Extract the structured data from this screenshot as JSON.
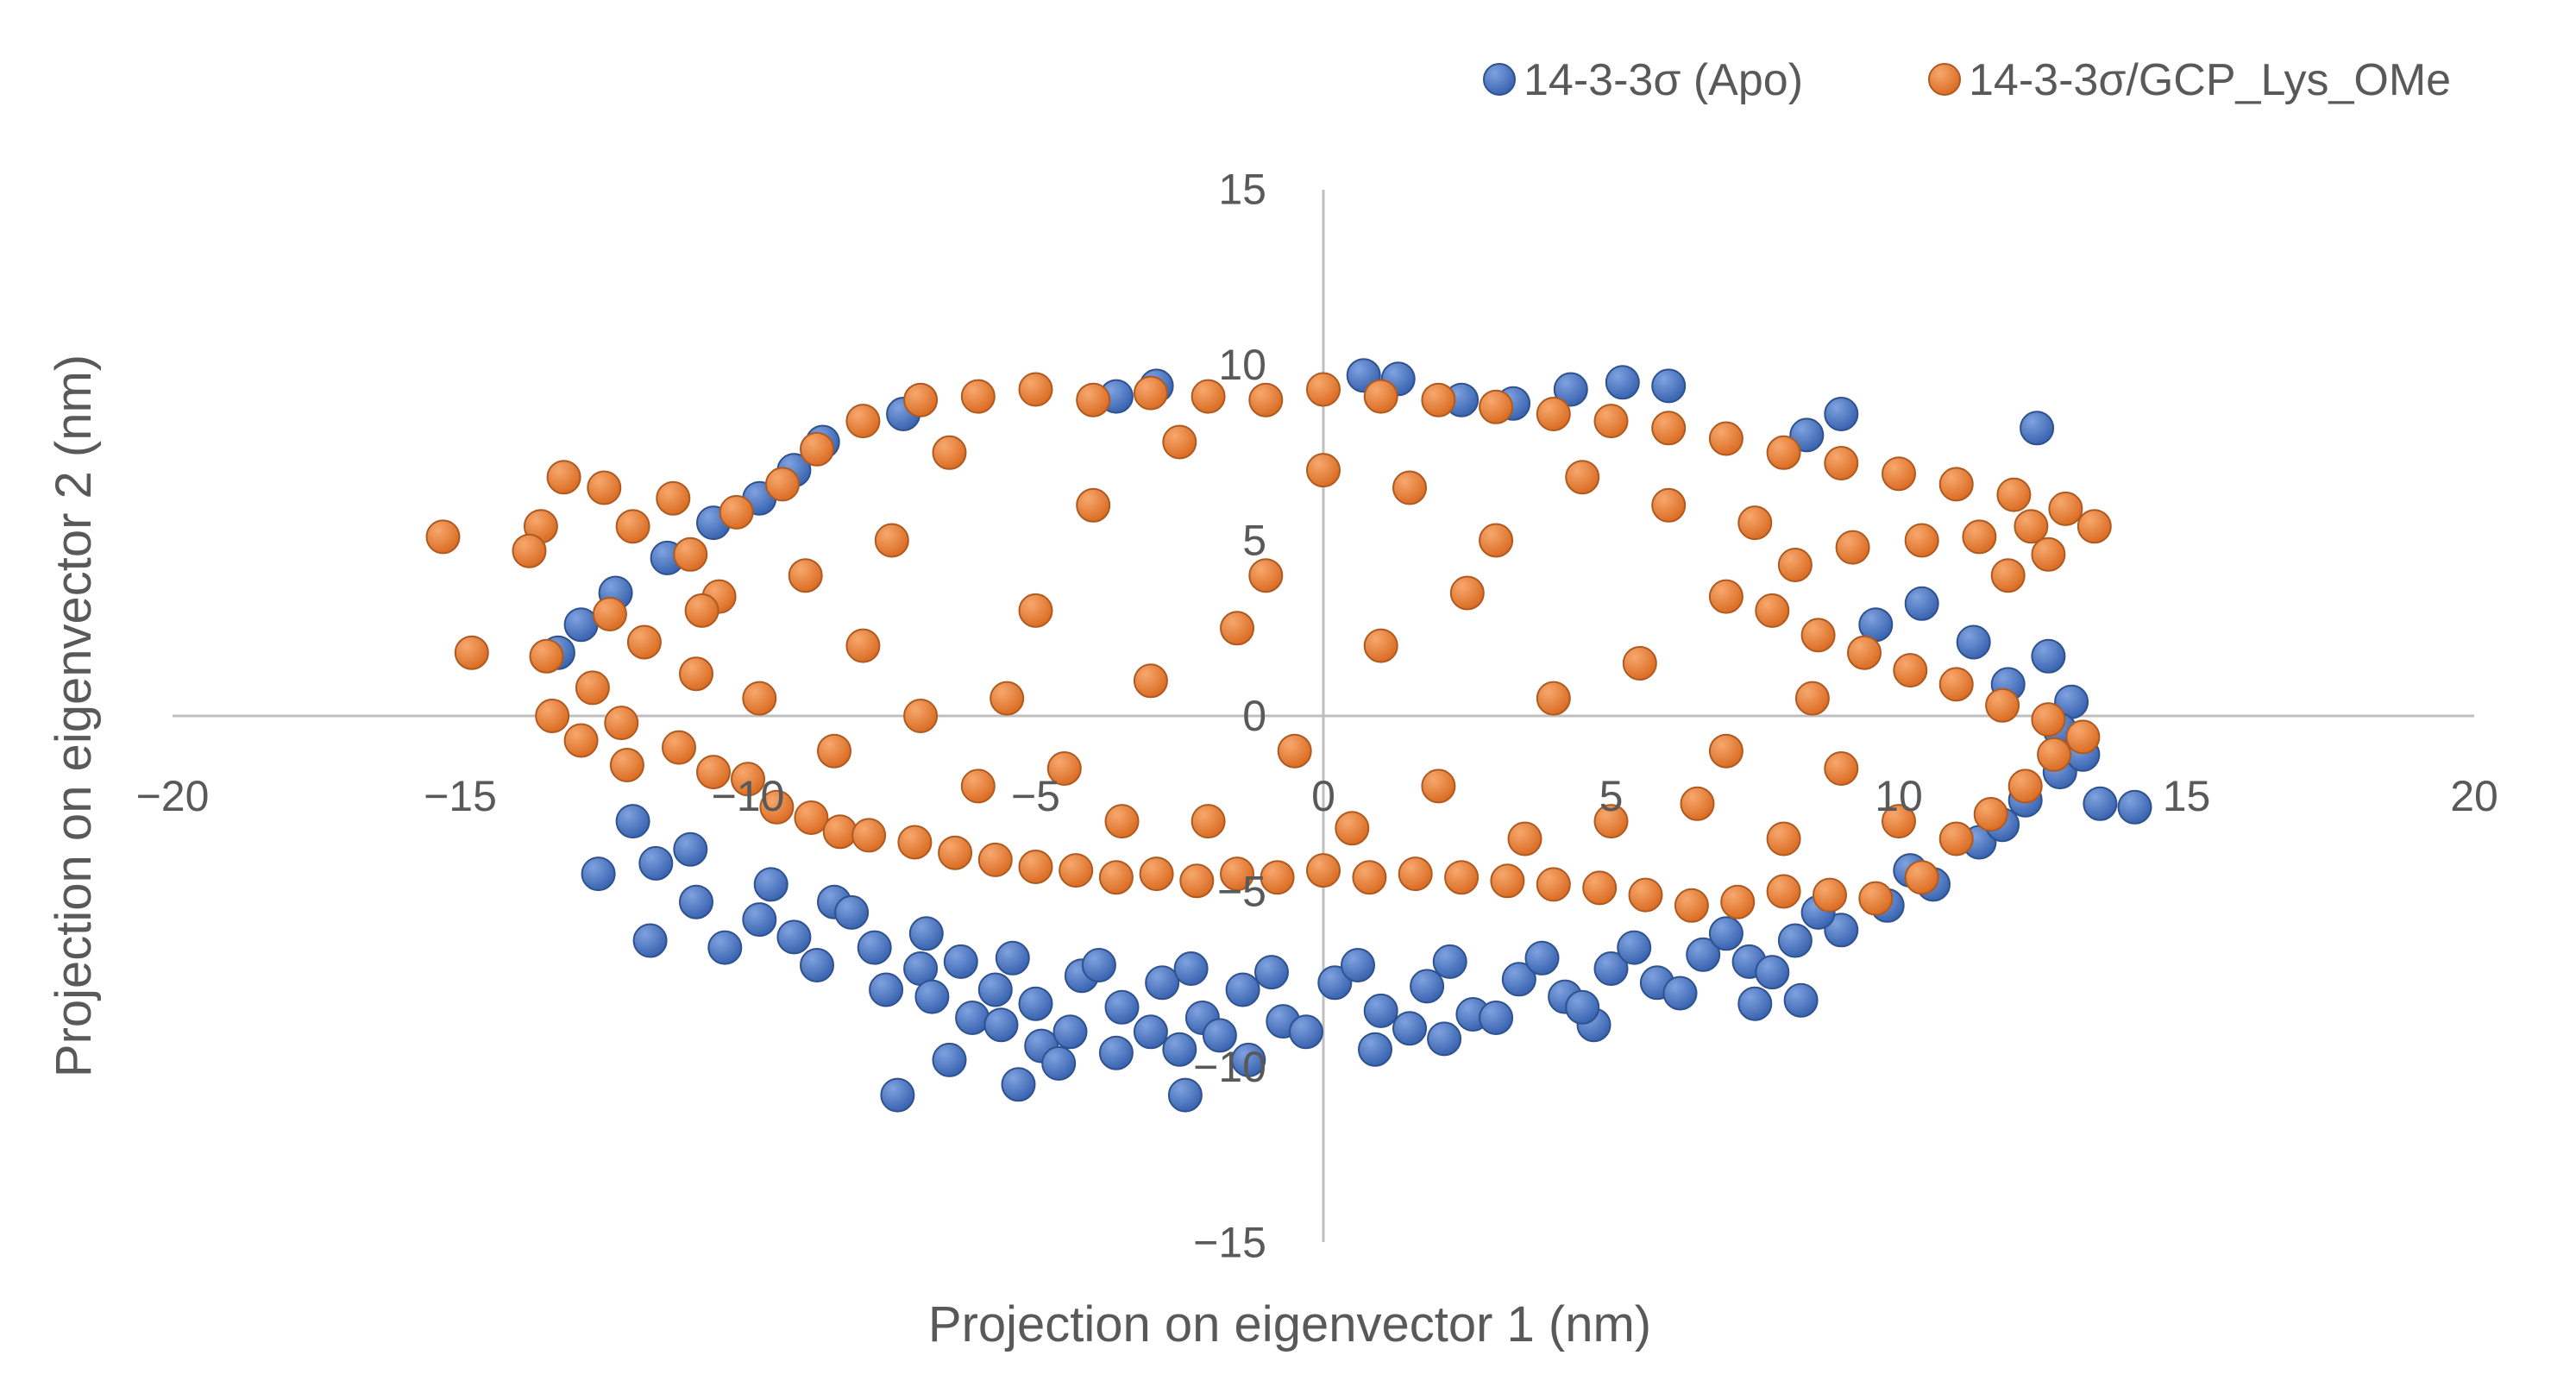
{
  "chart_data": {
    "type": "scatter",
    "xlabel": "Projection on eigenvector 1 (nm)",
    "ylabel": "Projection on eigenvector 2 (nm)",
    "xlim": [
      -20,
      20
    ],
    "ylim": [
      -15,
      15
    ],
    "xticks": [
      -20,
      -15,
      -10,
      -5,
      0,
      5,
      10,
      15,
      20
    ],
    "yticks": [
      -15,
      -10,
      -5,
      0,
      5,
      10,
      15
    ],
    "legend_position": "top-right",
    "grid": false,
    "series": [
      {
        "name": "14-3-3σ (Apo)",
        "color": "#4472C4",
        "points": [
          [
            -7.4,
            -10.8
          ],
          [
            -6.5,
            -9.8
          ],
          [
            -5.3,
            -10.5
          ],
          [
            -2.4,
            -10.8
          ],
          [
            -6.1,
            -8.6
          ],
          [
            -4.9,
            -9.4
          ],
          [
            -3.6,
            -9.6
          ],
          [
            -2.5,
            -9.5
          ],
          [
            -1.3,
            -9.8
          ],
          [
            0.9,
            -9.5
          ],
          [
            2.1,
            -9.2
          ],
          [
            4.7,
            -8.8
          ],
          [
            7.5,
            -8.2
          ],
          [
            8.3,
            -8.1
          ],
          [
            -12.6,
            -4.5
          ],
          [
            -12.0,
            -3.0
          ],
          [
            -11.7,
            -6.4
          ],
          [
            -10.9,
            -5.3
          ],
          [
            -9.8,
            -5.8
          ],
          [
            -9.2,
            -6.3
          ],
          [
            -8.5,
            -5.3
          ],
          [
            -7.8,
            -6.6
          ],
          [
            -7.0,
            -7.2
          ],
          [
            -6.3,
            -7.0
          ],
          [
            -5.7,
            -7.8
          ],
          [
            -5.0,
            -8.2
          ],
          [
            -4.2,
            -7.4
          ],
          [
            -3.5,
            -8.3
          ],
          [
            -2.8,
            -7.6
          ],
          [
            -2.1,
            -8.6
          ],
          [
            -1.4,
            -7.8
          ],
          [
            -0.7,
            -8.7
          ],
          [
            0.2,
            -7.6
          ],
          [
            1.0,
            -8.4
          ],
          [
            1.8,
            -7.7
          ],
          [
            2.6,
            -8.5
          ],
          [
            3.4,
            -7.5
          ],
          [
            4.2,
            -8.0
          ],
          [
            5.0,
            -7.2
          ],
          [
            5.8,
            -7.6
          ],
          [
            6.6,
            -6.8
          ],
          [
            7.4,
            -7.0
          ],
          [
            8.2,
            -6.4
          ],
          [
            9.0,
            -6.1
          ],
          [
            9.8,
            -5.4
          ],
          [
            10.6,
            -4.8
          ],
          [
            11.4,
            -3.6
          ],
          [
            12.2,
            -2.4
          ],
          [
            12.8,
            -1.6
          ],
          [
            13.5,
            -2.5
          ],
          [
            14.1,
            -2.6
          ],
          [
            13.0,
            0.4
          ],
          [
            12.6,
            1.7
          ],
          [
            12.4,
            8.2
          ],
          [
            12.8,
            -0.4
          ],
          [
            11.9,
            0.9
          ],
          [
            11.3,
            2.1
          ],
          [
            10.4,
            3.2
          ],
          [
            9.6,
            2.6
          ],
          [
            9.0,
            8.6
          ],
          [
            8.4,
            8.0
          ],
          [
            6.0,
            9.4
          ],
          [
            5.2,
            9.5
          ],
          [
            4.3,
            9.3
          ],
          [
            3.3,
            8.9
          ],
          [
            2.4,
            9.0
          ],
          [
            1.3,
            9.6
          ],
          [
            0.7,
            9.7
          ],
          [
            -2.9,
            9.4
          ],
          [
            -3.6,
            9.1
          ],
          [
            -7.3,
            8.6
          ],
          [
            -8.7,
            7.8
          ],
          [
            -9.2,
            7.0
          ],
          [
            -9.8,
            6.2
          ],
          [
            -10.6,
            5.5
          ],
          [
            -11.4,
            4.5
          ],
          [
            -12.3,
            3.5
          ],
          [
            -12.9,
            2.6
          ],
          [
            -13.3,
            1.8
          ],
          [
            -11.6,
            -4.2
          ],
          [
            -10.4,
            -6.6
          ],
          [
            -8.8,
            -7.1
          ],
          [
            -7.6,
            -7.8
          ],
          [
            -6.8,
            -8.0
          ],
          [
            -5.6,
            -8.8
          ],
          [
            -4.4,
            -9.0
          ],
          [
            -3.0,
            -9.0
          ],
          [
            -1.8,
            -9.1
          ],
          [
            -0.3,
            -9.0
          ],
          [
            1.5,
            -8.9
          ],
          [
            3.0,
            -8.6
          ],
          [
            4.5,
            -8.3
          ],
          [
            6.2,
            -7.9
          ],
          [
            7.8,
            -7.3
          ],
          [
            -9.6,
            -4.8
          ],
          [
            -8.2,
            -5.6
          ],
          [
            -6.9,
            -6.2
          ],
          [
            -5.4,
            -6.9
          ],
          [
            -3.9,
            -7.1
          ],
          [
            -2.3,
            -7.2
          ],
          [
            -0.9,
            -7.3
          ],
          [
            0.6,
            -7.1
          ],
          [
            2.2,
            -7.0
          ],
          [
            3.8,
            -6.9
          ],
          [
            5.4,
            -6.6
          ],
          [
            7.0,
            -6.2
          ],
          [
            8.6,
            -5.6
          ],
          [
            10.2,
            -4.4
          ],
          [
            11.8,
            -3.1
          ],
          [
            13.2,
            -1.1
          ],
          [
            -11.0,
            -3.8
          ],
          [
            -4.6,
            -9.9
          ]
        ]
      },
      {
        "name": "14-3-3σ/GCP_Lys_OMe",
        "color": "#ED7D31",
        "points": [
          [
            -15.3,
            5.1
          ],
          [
            -14.8,
            1.8
          ],
          [
            -13.6,
            5.4
          ],
          [
            -13.8,
            4.7
          ],
          [
            -13.2,
            6.8
          ],
          [
            -12.5,
            6.5
          ],
          [
            -11.3,
            6.2
          ],
          [
            -13.5,
            1.7
          ],
          [
            -13.4,
            0.0
          ],
          [
            -12.4,
            2.9
          ],
          [
            -12.9,
            -0.7
          ],
          [
            -12.1,
            -1.4
          ],
          [
            -12.7,
            0.8
          ],
          [
            -12.0,
            5.4
          ],
          [
            -11.0,
            4.6
          ],
          [
            -10.5,
            3.4
          ],
          [
            -11.8,
            2.1
          ],
          [
            -11.2,
            -0.9
          ],
          [
            -10.6,
            -1.6
          ],
          [
            -10.9,
            1.2
          ],
          [
            -10.0,
            -1.8
          ],
          [
            -9.5,
            -2.6
          ],
          [
            -8.9,
            -2.9
          ],
          [
            -8.4,
            -3.3
          ],
          [
            -7.9,
            -3.4
          ],
          [
            -7.1,
            -3.6
          ],
          [
            -6.4,
            -3.9
          ],
          [
            -5.7,
            -4.1
          ],
          [
            -5.0,
            -4.3
          ],
          [
            -4.3,
            -4.4
          ],
          [
            -3.6,
            -4.6
          ],
          [
            -2.9,
            -4.5
          ],
          [
            -2.2,
            -4.7
          ],
          [
            -1.5,
            -4.5
          ],
          [
            -0.8,
            -4.6
          ],
          [
            0.0,
            -4.4
          ],
          [
            0.8,
            -4.6
          ],
          [
            1.6,
            -4.5
          ],
          [
            2.4,
            -4.6
          ],
          [
            3.2,
            -4.7
          ],
          [
            4.0,
            -4.8
          ],
          [
            4.8,
            -4.9
          ],
          [
            5.6,
            -5.1
          ],
          [
            6.4,
            -5.4
          ],
          [
            7.2,
            -5.3
          ],
          [
            8.0,
            -5.0
          ],
          [
            8.8,
            -5.1
          ],
          [
            9.6,
            -5.2
          ],
          [
            10.4,
            -4.6
          ],
          [
            11.0,
            -3.5
          ],
          [
            11.6,
            -2.8
          ],
          [
            12.2,
            -2.0
          ],
          [
            12.7,
            -1.1
          ],
          [
            13.2,
            -0.6
          ],
          [
            12.6,
            -0.1
          ],
          [
            11.8,
            0.3
          ],
          [
            11.0,
            0.9
          ],
          [
            10.2,
            1.3
          ],
          [
            9.4,
            1.8
          ],
          [
            8.6,
            2.3
          ],
          [
            7.8,
            3.0
          ],
          [
            7.0,
            3.4
          ],
          [
            8.2,
            4.3
          ],
          [
            9.2,
            4.8
          ],
          [
            10.4,
            5.0
          ],
          [
            11.4,
            5.1
          ],
          [
            12.3,
            5.4
          ],
          [
            12.9,
            5.9
          ],
          [
            13.4,
            5.4
          ],
          [
            12.6,
            4.6
          ],
          [
            11.9,
            4.0
          ],
          [
            12.0,
            6.3
          ],
          [
            11.0,
            6.6
          ],
          [
            10.0,
            6.9
          ],
          [
            9.0,
            7.2
          ],
          [
            8.0,
            7.5
          ],
          [
            7.0,
            7.9
          ],
          [
            6.0,
            8.2
          ],
          [
            5.0,
            8.4
          ],
          [
            4.0,
            8.6
          ],
          [
            3.0,
            8.8
          ],
          [
            2.0,
            9.0
          ],
          [
            1.0,
            9.1
          ],
          [
            0.0,
            9.3
          ],
          [
            -1.0,
            9.0
          ],
          [
            -2.0,
            9.1
          ],
          [
            -3.0,
            9.2
          ],
          [
            -4.0,
            9.0
          ],
          [
            -5.0,
            9.3
          ],
          [
            -6.0,
            9.1
          ],
          [
            -7.0,
            9.0
          ],
          [
            -8.0,
            8.4
          ],
          [
            -8.8,
            7.6
          ],
          [
            -9.4,
            6.6
          ],
          [
            -10.2,
            5.8
          ],
          [
            -9.0,
            4.0
          ],
          [
            -8.0,
            2.0
          ],
          [
            -7.0,
            0.0
          ],
          [
            -6.0,
            -2.0
          ],
          [
            -5.0,
            3.0
          ],
          [
            -4.0,
            6.0
          ],
          [
            -3.0,
            1.0
          ],
          [
            -2.0,
            -3.0
          ],
          [
            -1.0,
            4.0
          ],
          [
            0.0,
            7.0
          ],
          [
            1.0,
            2.0
          ],
          [
            2.0,
            -2.0
          ],
          [
            3.0,
            5.0
          ],
          [
            4.0,
            0.5
          ],
          [
            5.0,
            -3.0
          ],
          [
            6.0,
            6.0
          ],
          [
            7.0,
            -1.0
          ],
          [
            8.0,
            -3.5
          ],
          [
            9.0,
            -1.5
          ],
          [
            10.0,
            -3.0
          ],
          [
            -6.5,
            7.5
          ],
          [
            -4.5,
            -1.5
          ],
          [
            -2.5,
            7.8
          ],
          [
            -0.5,
            -1.0
          ],
          [
            1.5,
            6.5
          ],
          [
            3.5,
            -3.5
          ],
          [
            5.5,
            1.5
          ],
          [
            7.5,
            5.5
          ],
          [
            -8.5,
            -1.0
          ],
          [
            -7.5,
            5.0
          ],
          [
            -5.5,
            0.5
          ],
          [
            -3.5,
            -3.0
          ],
          [
            -1.5,
            2.5
          ],
          [
            0.5,
            -3.2
          ],
          [
            2.5,
            3.5
          ],
          [
            4.5,
            6.8
          ],
          [
            6.5,
            -2.5
          ],
          [
            8.5,
            0.5
          ],
          [
            -9.8,
            0.5
          ],
          [
            -10.8,
            3.0
          ],
          [
            -12.2,
            -0.2
          ]
        ]
      }
    ]
  }
}
